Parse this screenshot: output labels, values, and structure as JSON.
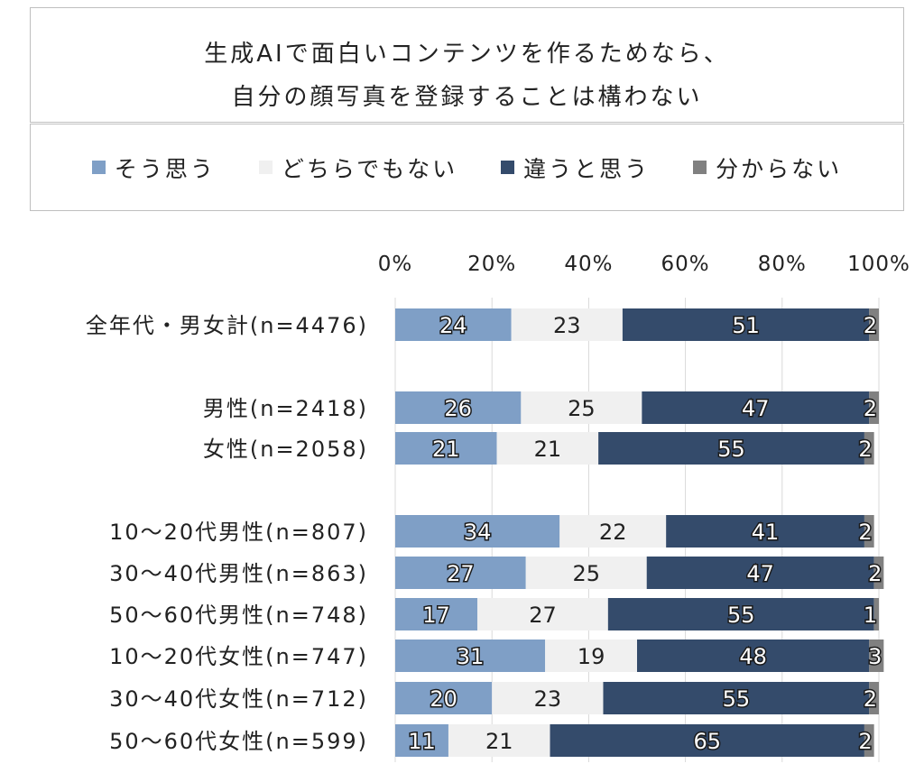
{
  "title": {
    "line1": "生成AIで面白いコンテンツを作るためなら、",
    "line2": "自分の顔写真を登録することは構わない"
  },
  "legend": [
    {
      "label": "そう思う",
      "color": "#7f9fc6"
    },
    {
      "label": "どちらでもない",
      "color": "#f0f0f0"
    },
    {
      "label": "違うと思う",
      "color": "#344b6b"
    },
    {
      "label": "分からない",
      "color": "#808080"
    }
  ],
  "chart_data": {
    "type": "bar",
    "orientation": "horizontal",
    "stacked": true,
    "xlim": [
      0,
      100
    ],
    "xticks": [
      "0%",
      "20%",
      "40%",
      "60%",
      "80%",
      "100%"
    ],
    "grid": true,
    "categories": [
      "全年代・男女計(n=4476)",
      "男性(n=2418)",
      "女性(n=2058)",
      "10～20代男性(n=807)",
      "30～40代男性(n=863)",
      "50～60代男性(n=748)",
      "10～20代女性(n=747)",
      "30～40代女性(n=712)",
      "50～60代女性(n=599)"
    ],
    "series": [
      {
        "name": "そう思う",
        "values": [
          24,
          26,
          21,
          34,
          27,
          17,
          31,
          20,
          11
        ]
      },
      {
        "name": "どちらでもない",
        "values": [
          23,
          25,
          21,
          22,
          25,
          27,
          19,
          23,
          21
        ]
      },
      {
        "name": "違うと思う",
        "values": [
          51,
          47,
          55,
          41,
          47,
          55,
          48,
          55,
          65
        ]
      },
      {
        "name": "分からない",
        "values": [
          2,
          2,
          2,
          2,
          2,
          1,
          3,
          2,
          2
        ]
      }
    ]
  }
}
